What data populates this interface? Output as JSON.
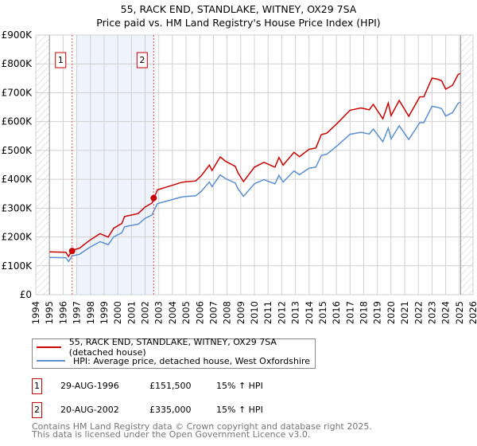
{
  "title_line1": "55, RACK END, STANDLAKE, WITNEY, OX29 7SA",
  "title_line2": "Price paid vs. HM Land Registry's House Price Index (HPI)",
  "chart_data": {
    "type": "line",
    "title": "55, RACK END, STANDLAKE, WITNEY, OX29 7SA — Price paid vs. HM Land Registry's House Price Index (HPI)",
    "xlim": [
      1994,
      2026
    ],
    "ylim": [
      0,
      900000
    ],
    "x_ticks": [
      "1994",
      "1995",
      "1996",
      "1997",
      "1998",
      "1999",
      "2000",
      "2001",
      "2002",
      "2003",
      "2004",
      "2005",
      "2006",
      "2007",
      "2008",
      "2009",
      "2010",
      "2011",
      "2012",
      "2013",
      "2014",
      "2015",
      "2016",
      "2017",
      "2018",
      "2019",
      "2020",
      "2021",
      "2022",
      "2023",
      "2024",
      "2025",
      "2026"
    ],
    "y_ticks": [
      {
        "v": 0,
        "label": "£0"
      },
      {
        "v": 100000,
        "label": "£100K"
      },
      {
        "v": 200000,
        "label": "£200K"
      },
      {
        "v": 300000,
        "label": "£300K"
      },
      {
        "v": 400000,
        "label": "£400K"
      },
      {
        "v": 500000,
        "label": "£500K"
      },
      {
        "v": 600000,
        "label": "£600K"
      },
      {
        "v": 700000,
        "label": "£700K"
      },
      {
        "v": 800000,
        "label": "£800K"
      },
      {
        "v": 900000,
        "label": "£900K"
      }
    ],
    "grid": true,
    "hatched_ranges": [
      [
        1994,
        1995
      ],
      [
        2025.1,
        2026
      ]
    ],
    "shaded_range": [
      1997.0,
      2002.63
    ],
    "series": [
      {
        "name": "55, RACK END, STANDLAKE, WITNEY, OX29 7SA (detached house)",
        "color": "#cc0000",
        "scale_of_hpi": 1.15
      },
      {
        "name": "HPI: Average price, detached house, West Oxfordshire",
        "color": "#5b8fd0",
        "x": [
          1995.0,
          1996.2,
          1996.4,
          1996.66,
          1997.2,
          1997.9,
          1998.7,
          1999.3,
          1999.7,
          2000.3,
          2000.5,
          2001.5,
          2002.0,
          2002.5,
          2002.9,
          2003.8,
          2004.6,
          2004.9,
          2005.7,
          2006.1,
          2006.7,
          2006.9,
          2007.5,
          2007.9,
          2008.6,
          2008.8,
          2009.2,
          2010.0,
          2010.7,
          2011.5,
          2011.8,
          2012.1,
          2012.9,
          2013.3,
          2014.0,
          2014.5,
          2014.9,
          2015.3,
          2016.1,
          2017.0,
          2017.8,
          2018.4,
          2018.7,
          2019.4,
          2019.8,
          2020.0,
          2020.6,
          2021.3,
          2022.1,
          2022.4,
          2023.0,
          2023.4,
          2023.7,
          2024.0,
          2024.5,
          2024.9,
          2025.05
        ],
        "y": [
          129000,
          125000,
          119000,
          132000,
          139000,
          166000,
          180000,
          175000,
          202000,
          211000,
          239000,
          244000,
          262000,
          280000,
          313000,
          327000,
          341000,
          336000,
          345000,
          359000,
          387000,
          378000,
          414000,
          400000,
          391000,
          364000,
          341000,
          387000,
          395000,
          387000,
          414000,
          387000,
          433000,
          414000,
          437000,
          446000,
          479000,
          488000,
          520000,
          552000,
          566000,
          557000,
          571000,
          534000,
          575000,
          539000,
          589000,
          534000,
          598000,
          598000,
          649000,
          653000,
          644000,
          617000,
          635000,
          660000,
          667000
        ]
      }
    ],
    "sales": [
      {
        "id": "1",
        "year": 1996.66,
        "price": 151500
      },
      {
        "id": "2",
        "year": 2002.63,
        "price": 335000
      }
    ]
  },
  "legend": {
    "property_label": "55, RACK END, STANDLAKE, WITNEY, OX29 7SA (detached house)",
    "hpi_label": "HPI: Average price, detached house, West Oxfordshire"
  },
  "sales_table": [
    {
      "num": "1",
      "date": "29-AUG-1996",
      "price": "£151,500",
      "hpi": "15% ↑ HPI"
    },
    {
      "num": "2",
      "date": "20-AUG-2002",
      "price": "£335,000",
      "hpi": "15% ↑ HPI"
    }
  ],
  "footer_line1": "Contains HM Land Registry data © Crown copyright and database right 2025.",
  "footer_line2": "This data is licensed under the Open Government Licence v3.0."
}
